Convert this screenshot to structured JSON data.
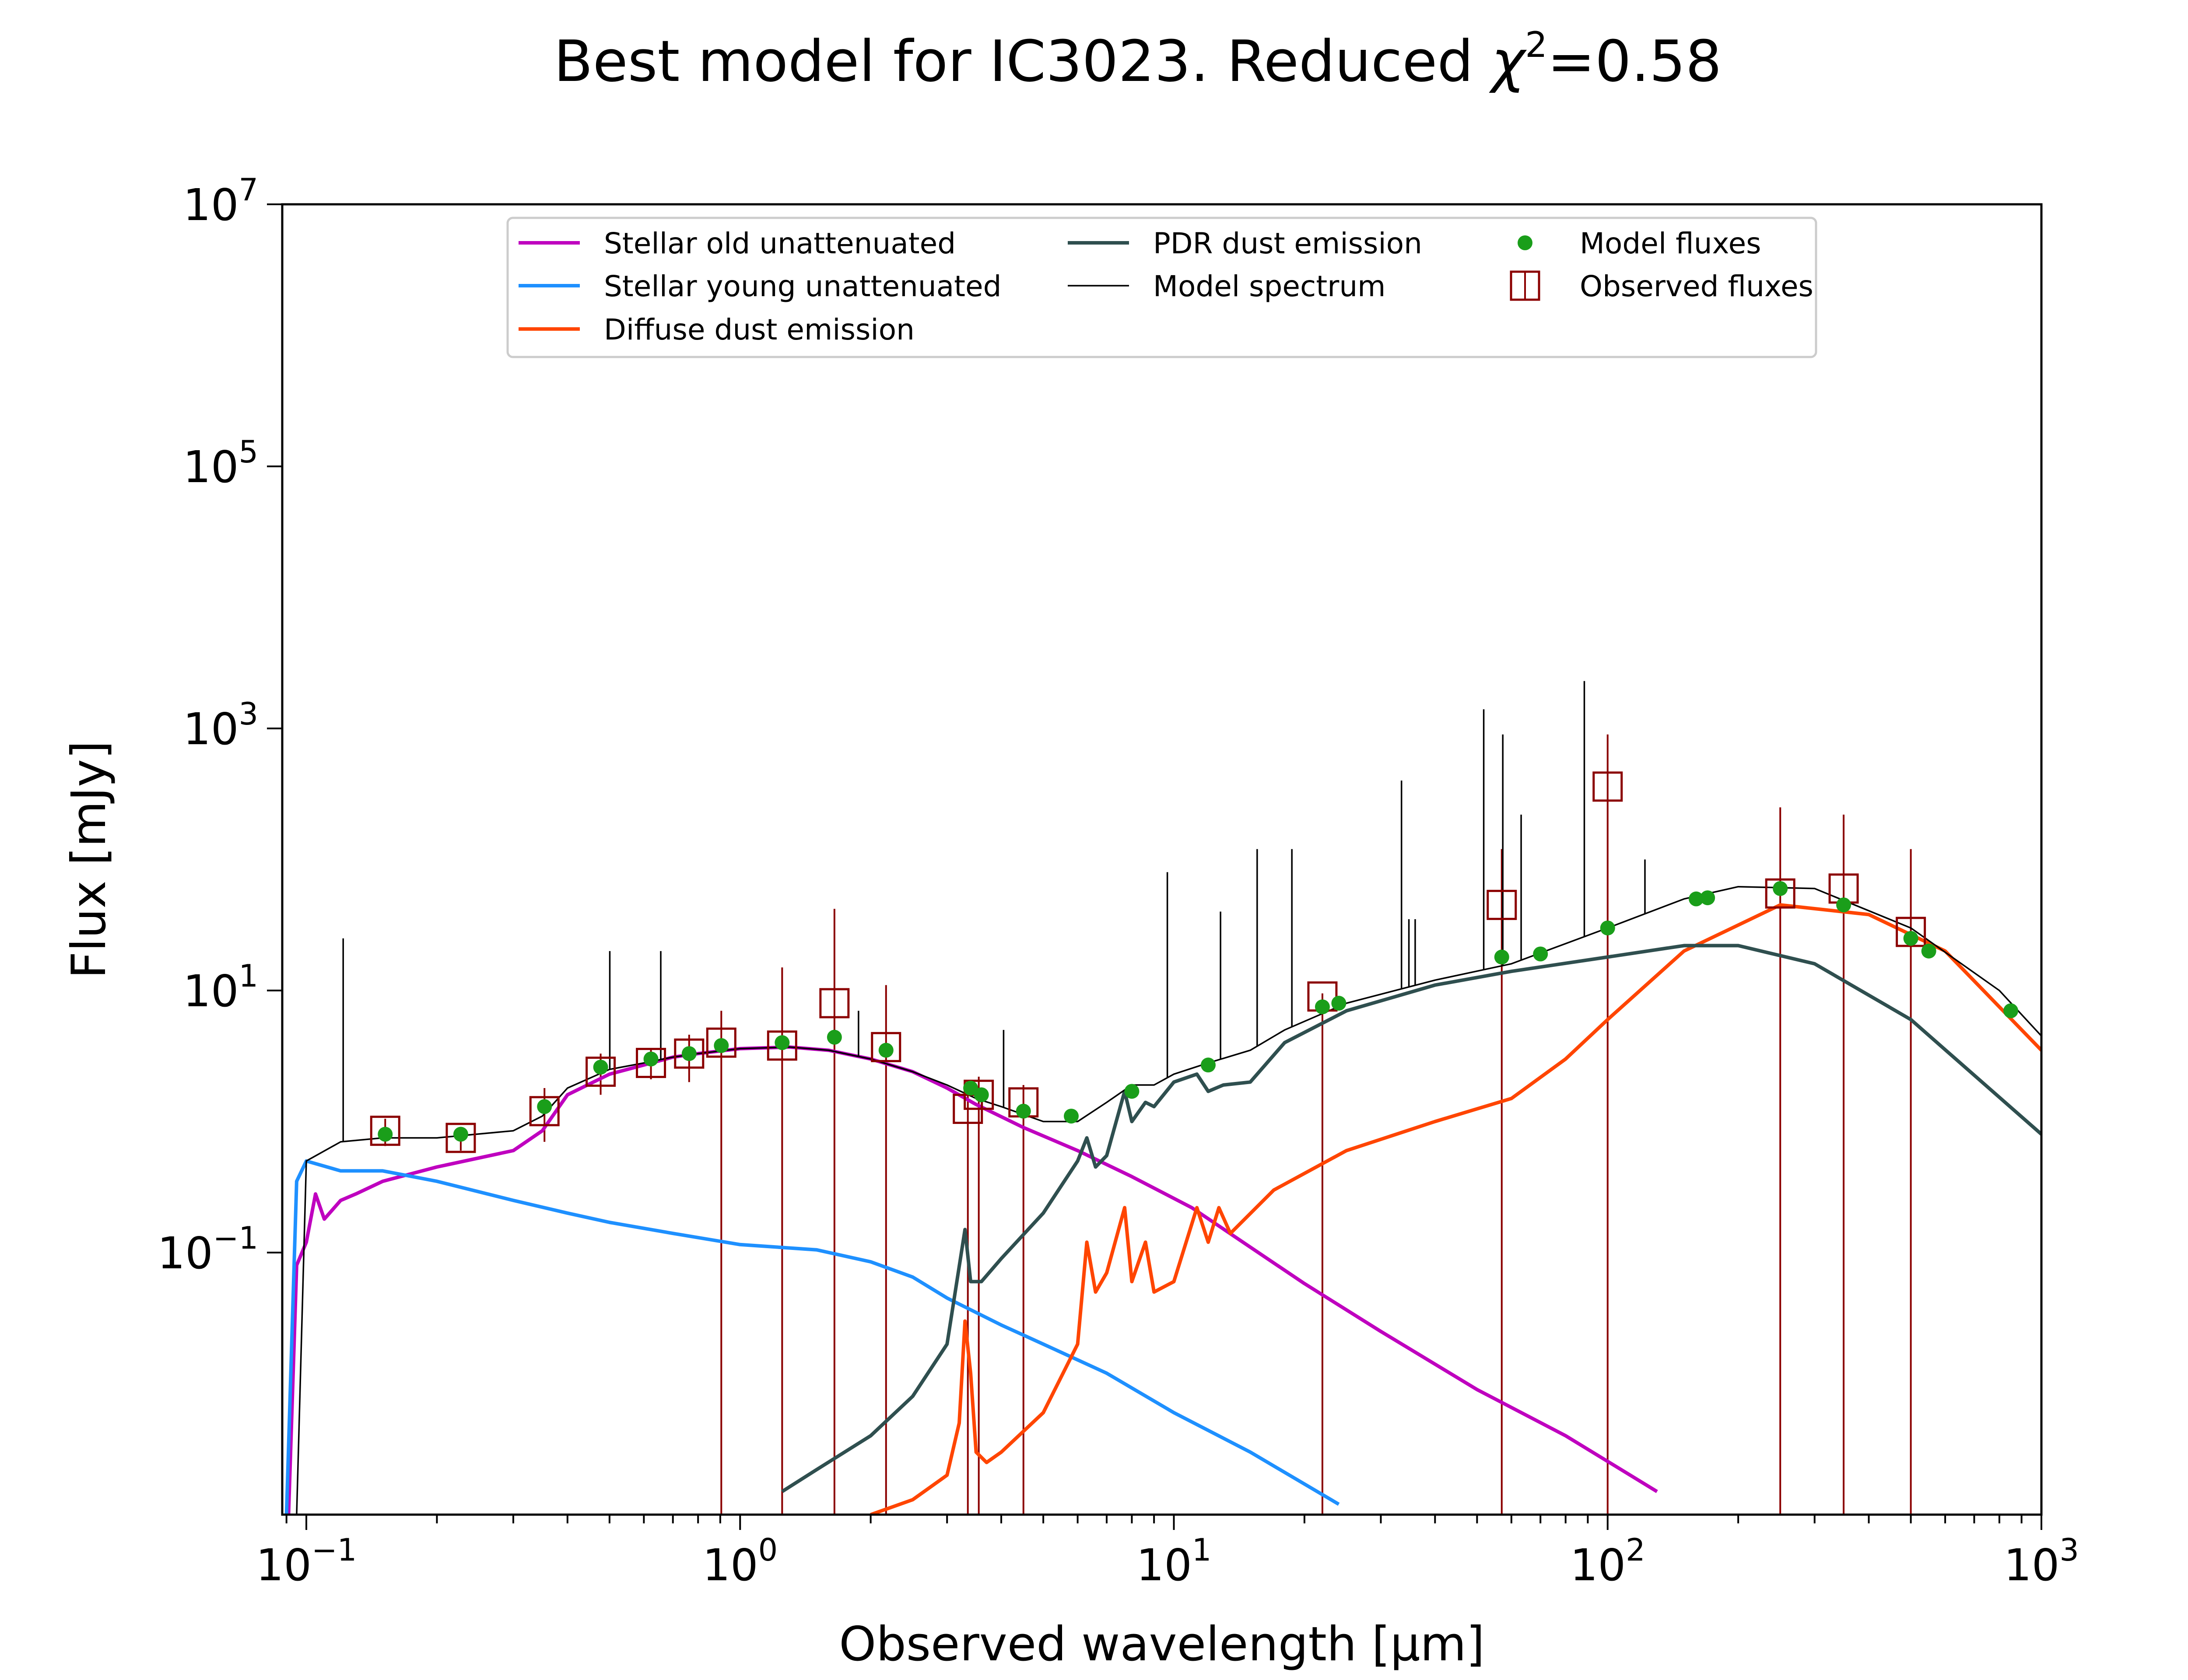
{
  "chart_data": {
    "type": "line",
    "title": "Best model for IC3023. Reduced χ²=0.58",
    "title_main": "Best model for IC3023. Reduced ",
    "title_chi": "χ",
    "title_sup": "2",
    "title_value": "=0.58",
    "xlabel": "Observed wavelength [μm]",
    "ylabel": "Flux [mJy]",
    "x_scale": "log",
    "y_scale": "log",
    "xlim": [
      0.088,
      1000
    ],
    "ylim": [
      0.001,
      10000000
    ],
    "grid": false,
    "legend_position": "top-center",
    "x_ticks": [
      {
        "base": "10",
        "exp": "−1",
        "value": 0.1
      },
      {
        "base": "10",
        "exp": "0",
        "value": 1
      },
      {
        "base": "10",
        "exp": "1",
        "value": 10
      },
      {
        "base": "10",
        "exp": "2",
        "value": 100
      },
      {
        "base": "10",
        "exp": "3",
        "value": 1000
      }
    ],
    "y_ticks": [
      {
        "base": "10",
        "exp": "−1",
        "value": 0.1
      },
      {
        "base": "10",
        "exp": "1",
        "value": 10
      },
      {
        "base": "10",
        "exp": "3",
        "value": 1000
      },
      {
        "base": "10",
        "exp": "5",
        "value": 100000
      },
      {
        "base": "10",
        "exp": "7",
        "value": 10000000
      }
    ],
    "legend": [
      {
        "label": "Stellar old unattenuated",
        "color": "#bf00bf",
        "kind": "line"
      },
      {
        "label": "Stellar young unattenuated",
        "color": "#1e90ff",
        "kind": "line"
      },
      {
        "label": "Diffuse dust emission",
        "color": "#ff4500",
        "kind": "line"
      },
      {
        "label": "PDR dust emission",
        "color": "#2f4f4f",
        "kind": "line"
      },
      {
        "label": "Model spectrum",
        "color": "#000000",
        "kind": "thin-line"
      },
      {
        "label": "Model fluxes",
        "color": "#1a9e1a",
        "kind": "dot"
      },
      {
        "label": "Observed fluxes",
        "color": "#8b0000",
        "kind": "square"
      }
    ],
    "series": [
      {
        "name": "Stellar old unattenuated",
        "color": "#bf00bf",
        "x": [
          0.091,
          0.095,
          0.1,
          0.105,
          0.11,
          0.12,
          0.13,
          0.15,
          0.2,
          0.3,
          0.35,
          0.4,
          0.5,
          0.6,
          0.7,
          0.8,
          1.0,
          1.3,
          1.6,
          2.0,
          2.5,
          3.0,
          3.5,
          4.5,
          6.0,
          8.0,
          11.0,
          15.0,
          20.0,
          30.0,
          50.0,
          80.0,
          130.0
        ],
        "y": [
          0.001,
          0.08,
          0.12,
          0.28,
          0.18,
          0.25,
          0.28,
          0.35,
          0.45,
          0.6,
          0.85,
          1.6,
          2.3,
          2.7,
          3.1,
          3.3,
          3.6,
          3.7,
          3.5,
          3.0,
          2.4,
          1.8,
          1.35,
          0.9,
          0.6,
          0.38,
          0.22,
          0.11,
          0.058,
          0.025,
          0.009,
          0.004,
          0.0015
        ]
      },
      {
        "name": "Stellar young unattenuated",
        "color": "#1e90ff",
        "x": [
          0.09,
          0.095,
          0.1,
          0.12,
          0.15,
          0.2,
          0.3,
          0.4,
          0.5,
          0.7,
          1.0,
          1.5,
          2.0,
          2.5,
          3.0,
          4.0,
          5.0,
          7.0,
          10.0,
          15.0,
          24.0
        ],
        "y": [
          0.001,
          0.35,
          0.5,
          0.42,
          0.42,
          0.35,
          0.25,
          0.2,
          0.17,
          0.14,
          0.115,
          0.105,
          0.085,
          0.065,
          0.045,
          0.028,
          0.02,
          0.012,
          0.006,
          0.003,
          0.0012
        ]
      },
      {
        "name": "Diffuse dust emission",
        "color": "#ff4500",
        "x": [
          2.0,
          2.5,
          3.0,
          3.2,
          3.3,
          3.4,
          3.5,
          3.7,
          4.0,
          5.0,
          6.0,
          6.3,
          6.6,
          7.0,
          7.7,
          8.0,
          8.6,
          9.0,
          10.0,
          11.3,
          12.0,
          12.7,
          13.5,
          17.0,
          25.0,
          40.0,
          60.0,
          80.0,
          100.0,
          150.0,
          250.0,
          400.0,
          600.0,
          1000.0
        ],
        "y": [
          0.001,
          0.0013,
          0.002,
          0.005,
          0.03,
          0.012,
          0.003,
          0.0025,
          0.003,
          0.006,
          0.02,
          0.12,
          0.05,
          0.07,
          0.22,
          0.06,
          0.12,
          0.05,
          0.06,
          0.22,
          0.12,
          0.22,
          0.14,
          0.3,
          0.6,
          1.0,
          1.5,
          3.0,
          6.0,
          20.0,
          45.0,
          38.0,
          20.0,
          3.5
        ]
      },
      {
        "name": "PDR dust emission",
        "color": "#2f4f4f",
        "x": [
          1.25,
          1.5,
          2.0,
          2.5,
          3.0,
          3.3,
          3.4,
          3.6,
          4.0,
          5.0,
          6.0,
          6.3,
          6.6,
          7.0,
          7.7,
          8.0,
          8.6,
          9.0,
          10.0,
          11.3,
          12.0,
          13.0,
          15.0,
          18.0,
          25.0,
          40.0,
          60.0,
          100.0,
          150.0,
          200.0,
          300.0,
          500.0,
          1000.0
        ],
        "y": [
          0.0015,
          0.0022,
          0.004,
          0.008,
          0.02,
          0.15,
          0.06,
          0.06,
          0.09,
          0.2,
          0.5,
          0.75,
          0.45,
          0.55,
          1.7,
          1.0,
          1.4,
          1.3,
          2.0,
          2.3,
          1.7,
          1.9,
          2.0,
          4.0,
          7.0,
          11.0,
          14.0,
          18.0,
          22.0,
          22.0,
          16.0,
          6.0,
          0.8
        ]
      },
      {
        "name": "Model spectrum",
        "color": "#000000",
        "x": [
          0.095,
          0.1,
          0.12,
          0.15,
          0.2,
          0.3,
          0.35,
          0.4,
          0.5,
          0.6,
          0.7,
          0.8,
          1.0,
          1.3,
          1.6,
          2.0,
          2.5,
          3.0,
          3.5,
          4.0,
          5.0,
          6.0,
          7.0,
          8.0,
          9.0,
          10.0,
          12.0,
          15.0,
          18.0,
          25.0,
          40.0,
          60.0,
          100.0,
          150.0,
          200.0,
          300.0,
          500.0,
          800.0,
          1000.0
        ],
        "y": [
          0.001,
          0.5,
          0.7,
          0.75,
          0.75,
          0.85,
          1.1,
          1.8,
          2.5,
          2.8,
          3.1,
          3.3,
          3.6,
          3.7,
          3.5,
          3.0,
          2.4,
          1.9,
          1.5,
          1.3,
          1.0,
          1.0,
          1.4,
          1.9,
          1.9,
          2.3,
          2.8,
          3.5,
          5.0,
          8.0,
          12.0,
          16.0,
          30.0,
          50.0,
          62.0,
          60.0,
          30.0,
          10.0,
          4.5
        ]
      }
    ],
    "model_spectrum_lines": [
      {
        "x": 0.1216,
        "y_top": 25.0
      },
      {
        "x": 0.5007,
        "y_top": 20.0
      },
      {
        "x": 0.6563,
        "y_top": 20.0
      },
      {
        "x": 1.875,
        "y_top": 7.0
      },
      {
        "x": 4.05,
        "y_top": 5.0
      },
      {
        "x": 9.66,
        "y_top": 80.0
      },
      {
        "x": 12.81,
        "y_top": 40.0
      },
      {
        "x": 15.56,
        "y_top": 120.0
      },
      {
        "x": 18.71,
        "y_top": 120.0
      },
      {
        "x": 33.48,
        "y_top": 400.0
      },
      {
        "x": 34.82,
        "y_top": 35.0
      },
      {
        "x": 36.0,
        "y_top": 35.0
      },
      {
        "x": 51.8,
        "y_top": 1400.0
      },
      {
        "x": 57.32,
        "y_top": 900.0
      },
      {
        "x": 63.18,
        "y_top": 220.0
      },
      {
        "x": 88.36,
        "y_top": 2300.0
      },
      {
        "x": 121.9,
        "y_top": 100.0
      }
    ],
    "model_fluxes": {
      "x": [
        0.152,
        0.227,
        0.354,
        0.477,
        0.623,
        0.763,
        0.905,
        1.25,
        1.65,
        2.17,
        3.4,
        3.6,
        4.5,
        5.8,
        8.0,
        12.0,
        22.0,
        24.0,
        57.0,
        70.0,
        100.0,
        160.0,
        170.0,
        250.0,
        350.0,
        500.0,
        550.0,
        850.0
      ],
      "y": [
        0.8,
        0.8,
        1.3,
        2.6,
        3.0,
        3.3,
        3.8,
        4.0,
        4.4,
        3.5,
        1.8,
        1.6,
        1.2,
        1.1,
        1.7,
        2.7,
        7.5,
        8.0,
        18.0,
        19.0,
        30.0,
        50.0,
        51.0,
        60.0,
        45.0,
        25.0,
        20.0,
        7.0
      ]
    },
    "observed_fluxes": {
      "x": [
        0.152,
        0.227,
        0.354,
        0.477,
        0.623,
        0.763,
        0.905,
        1.25,
        1.65,
        2.17,
        3.35,
        3.55,
        4.5,
        22.0,
        57.0,
        100.0,
        250.0,
        350.0,
        500.0
      ],
      "y": [
        0.85,
        0.75,
        1.2,
        2.4,
        2.8,
        3.3,
        4.0,
        3.8,
        8.0,
        3.7,
        1.25,
        1.6,
        1.4,
        9.0,
        45.0,
        360.0,
        55.0,
        60.0,
        28.0
      ],
      "err_low": [
        0.65,
        0.6,
        0.7,
        1.6,
        2.1,
        2.0,
        0.001,
        0.001,
        0.001,
        0.001,
        0.001,
        0.001,
        0.001,
        0.001,
        0.001,
        0.001,
        0.001,
        0.001,
        0.001
      ],
      "err_high": [
        1.05,
        0.9,
        1.8,
        3.3,
        3.6,
        4.6,
        7.0,
        15.0,
        42.0,
        11.0,
        1.6,
        2.2,
        1.9,
        9.5,
        120.0,
        900.0,
        250.0,
        220.0,
        120.0
      ]
    }
  }
}
